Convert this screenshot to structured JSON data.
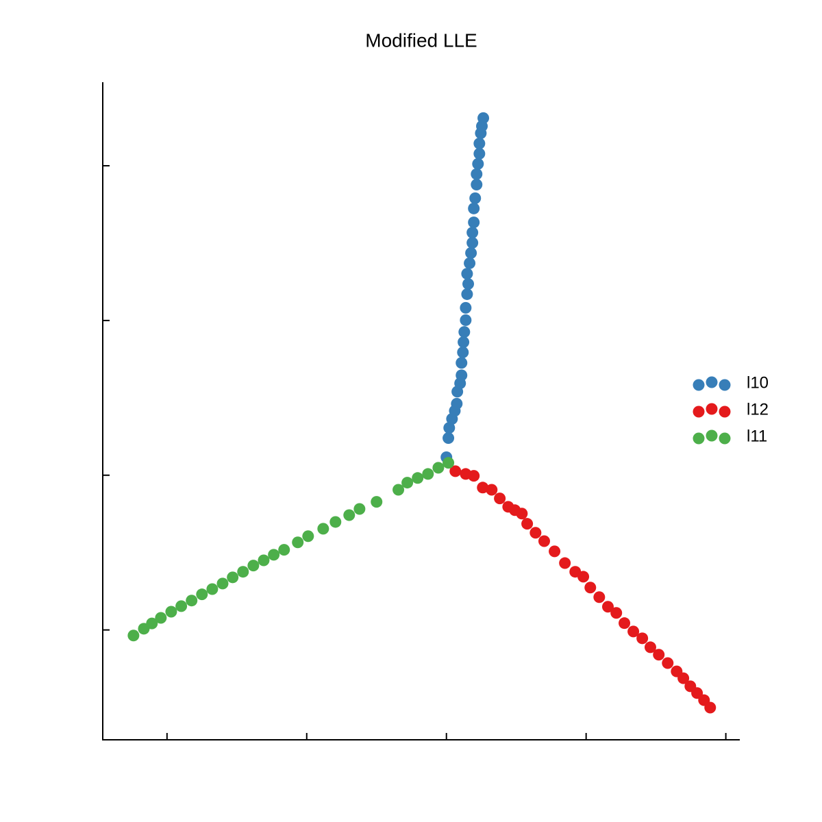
{
  "chart_data": {
    "type": "scatter",
    "title": "Modified LLE",
    "xlim": [
      -0.123,
      0.105
    ],
    "ylim": [
      -0.0855,
      0.127
    ],
    "xticks": [
      -0.1,
      -0.05,
      0,
      0.05,
      0.1
    ],
    "yticks": [
      -0.05,
      0,
      0.05,
      0.1
    ],
    "legend": "right",
    "series": [
      {
        "name": "l10",
        "color": "#377eb8",
        "x": [
          0,
          0.0007,
          0.001,
          0.002,
          0.003,
          0.0037,
          0.0039,
          0.0049,
          0.0054,
          0.0054,
          0.0059,
          0.0061,
          0.0064,
          0.0069,
          0.0069,
          0.0074,
          0.0078,
          0.0074,
          0.0083,
          0.0088,
          0.0093,
          0.0093,
          0.0098,
          0.0098,
          0.0103,
          0.0108,
          0.0108,
          0.0113,
          0.0118,
          0.0118,
          0.0123,
          0.0127,
          0.0132
        ],
        "values": [
          0.0058,
          0.012,
          0.0153,
          0.0182,
          0.0208,
          0.0231,
          0.027,
          0.0297,
          0.0323,
          0.0363,
          0.0397,
          0.043,
          0.0463,
          0.0501,
          0.0541,
          0.0585,
          0.0618,
          0.0651,
          0.0685,
          0.0718,
          0.0751,
          0.0784,
          0.0817,
          0.0862,
          0.0895,
          0.0939,
          0.0973,
          0.1006,
          0.1039,
          0.1072,
          0.1105,
          0.1128,
          0.1154
        ]
      },
      {
        "name": "l12",
        "color": "#e41a1c",
        "x": [
          0.0032,
          0.0069,
          0.0098,
          0.013,
          0.0162,
          0.0191,
          0.0221,
          0.0245,
          0.027,
          0.0289,
          0.0319,
          0.035,
          0.0387,
          0.0424,
          0.0461,
          0.049,
          0.0515,
          0.0547,
          0.0578,
          0.0608,
          0.0637,
          0.0669,
          0.0701,
          0.073,
          0.076,
          0.0792,
          0.0824,
          0.0848,
          0.0873,
          0.0897,
          0.0922,
          0.0944
        ],
        "values": [
          0.0013,
          0.0004,
          -0.0002,
          -0.004,
          -0.0047,
          -0.0075,
          -0.0102,
          -0.0113,
          -0.0124,
          -0.0157,
          -0.0186,
          -0.0213,
          -0.0246,
          -0.0284,
          -0.0312,
          -0.0328,
          -0.0363,
          -0.0394,
          -0.0425,
          -0.0445,
          -0.0478,
          -0.0505,
          -0.0527,
          -0.0556,
          -0.058,
          -0.0607,
          -0.0634,
          -0.0656,
          -0.0682,
          -0.0704,
          -0.0727,
          -0.0751
        ]
      },
      {
        "name": "l11",
        "color": "#4daf4a",
        "x": [
          -0.112,
          -0.1083,
          -0.1054,
          -0.1022,
          -0.0985,
          -0.0949,
          -0.0912,
          -0.0875,
          -0.0838,
          -0.0801,
          -0.0765,
          -0.0728,
          -0.0691,
          -0.0654,
          -0.0618,
          -0.0581,
          -0.0532,
          -0.0495,
          -0.0441,
          -0.0397,
          -0.0348,
          -0.0311,
          -0.025,
          -0.0172,
          -0.014,
          -0.0103,
          -0.0066,
          -0.0029,
          0.0007
        ],
        "values": [
          -0.0518,
          -0.0496,
          -0.0479,
          -0.0461,
          -0.0441,
          -0.0423,
          -0.0405,
          -0.0385,
          -0.0368,
          -0.035,
          -0.033,
          -0.0312,
          -0.0292,
          -0.0275,
          -0.0257,
          -0.0241,
          -0.0217,
          -0.0197,
          -0.0173,
          -0.0151,
          -0.0129,
          -0.0109,
          -0.0086,
          -0.0047,
          -0.0024,
          -0.0009,
          0.0004,
          0.0024,
          0.004
        ]
      }
    ]
  }
}
